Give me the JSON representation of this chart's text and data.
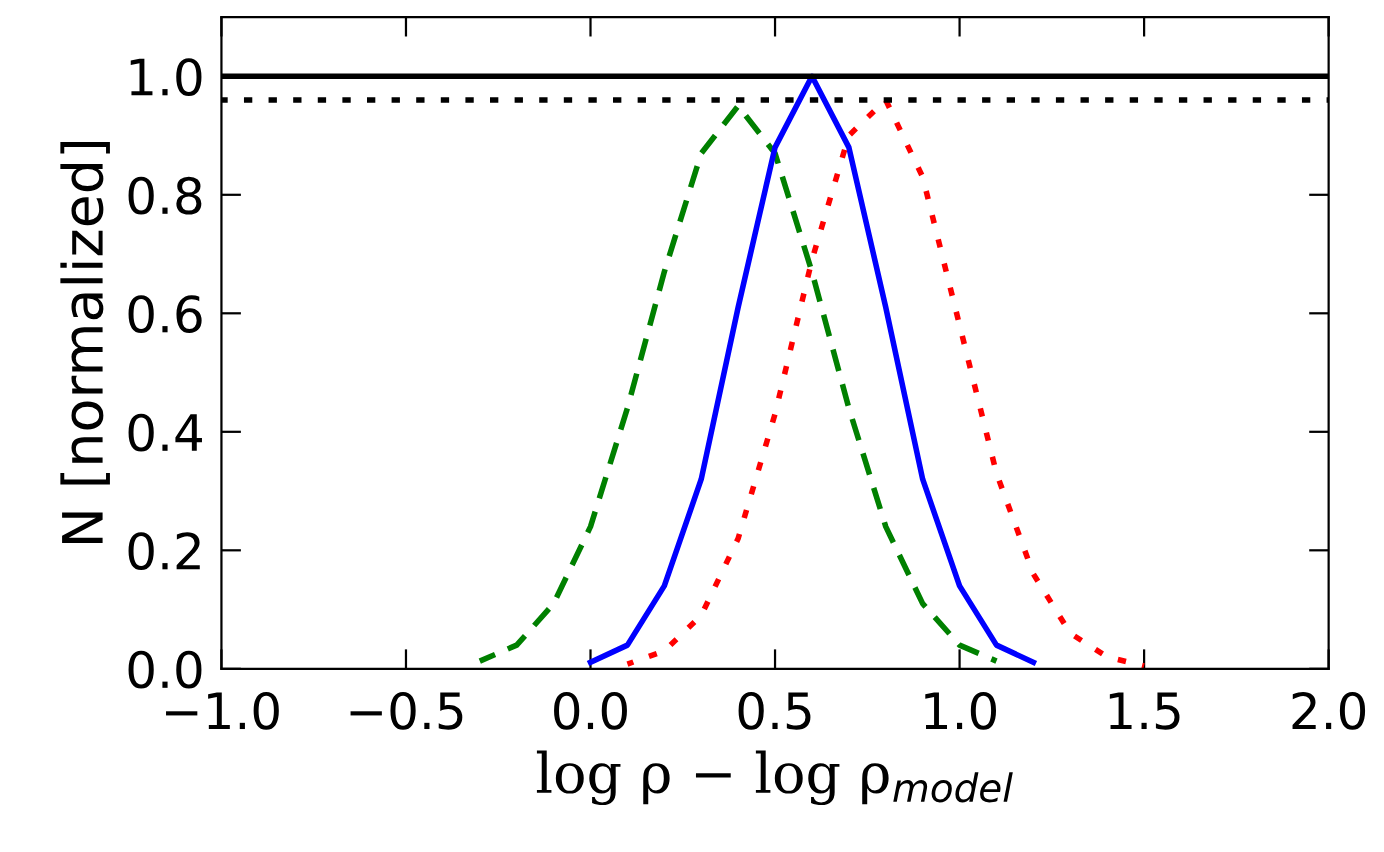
{
  "chart_data": {
    "type": "line",
    "xlabel": "log ρ − log ρ$_{model}$",
    "ylabel": "N [normalized]",
    "xlim": [
      -1.0,
      2.0
    ],
    "xticks": [
      {
        "value": -1.0,
        "label": "−1.0"
      },
      {
        "value": -0.5,
        "label": "−0.5"
      },
      {
        "value": 0.0,
        "label": "0.0"
      },
      0.5,
      {
        "value": 1.0,
        "label": "1.0"
      },
      1.5,
      {
        "value": 2.0,
        "label": "2.0"
      }
    ],
    "ylim": [
      0.0,
      1.1
    ],
    "yticks": [
      {
        "value": 0.0,
        "label": "0.0"
      },
      0.2,
      0.4,
      0.6,
      0.8,
      {
        "value": 1.0,
        "label": "1.0"
      }
    ],
    "grid": false,
    "legend": false,
    "ref_lines": [
      {
        "axis": "y",
        "value": 1.0,
        "color": "#000000",
        "line_style": "solid"
      },
      {
        "axis": "y",
        "value": 0.96,
        "color": "#000000",
        "line_style": "dotted"
      }
    ],
    "series": [
      {
        "color": "#008000",
        "line_style": "dashed",
        "x": [
          -0.3,
          -0.2,
          -0.1,
          0.0,
          0.1,
          0.2,
          0.3,
          0.4,
          0.5,
          0.6,
          0.7,
          0.8,
          0.9,
          1.0,
          1.1
        ],
        "values": [
          0.013,
          0.04,
          0.11,
          0.24,
          0.44,
          0.67,
          0.87,
          0.95,
          0.87,
          0.67,
          0.44,
          0.24,
          0.11,
          0.04,
          0.013
        ]
      },
      {
        "color": "#0000ff",
        "line_style": "solid",
        "x": [
          0.0,
          0.1,
          0.2,
          0.3,
          0.4,
          0.5,
          0.6,
          0.7,
          0.8,
          0.9,
          1.0,
          1.1,
          1.2
        ],
        "values": [
          0.011,
          0.04,
          0.14,
          0.32,
          0.61,
          0.88,
          1.0,
          0.88,
          0.61,
          0.32,
          0.14,
          0.04,
          0.011
        ]
      },
      {
        "color": "#ff0000",
        "line_style": "dotted",
        "x": [
          0.1,
          0.2,
          0.3,
          0.4,
          0.5,
          0.6,
          0.7,
          0.8,
          0.9,
          1.0,
          1.1,
          1.2,
          1.3,
          1.4,
          1.5
        ],
        "values": [
          0.008,
          0.03,
          0.09,
          0.22,
          0.43,
          0.69,
          0.9,
          0.96,
          0.83,
          0.58,
          0.33,
          0.16,
          0.06,
          0.02,
          0.005
        ]
      }
    ]
  }
}
